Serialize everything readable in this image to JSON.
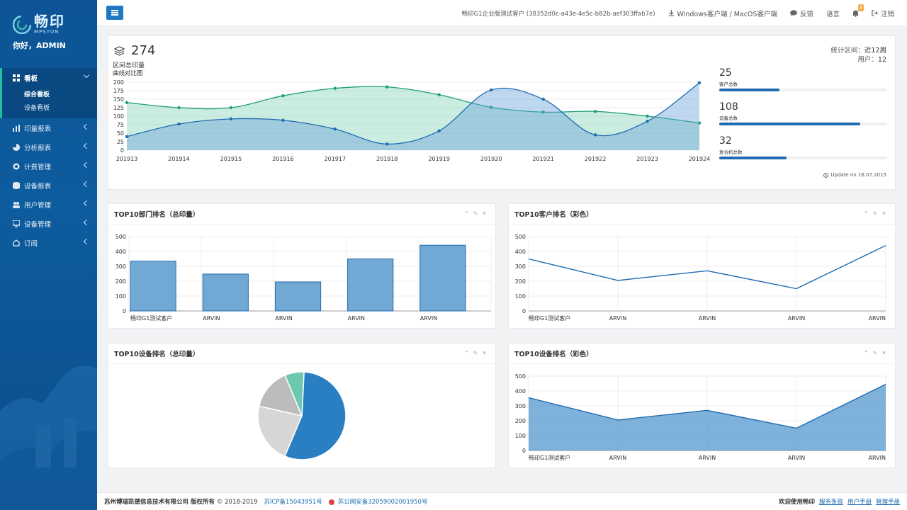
{
  "brand": {
    "name_cn": "畅印",
    "name_en": "MPSYUN",
    "greeting": "你好，ADMIN"
  },
  "sidebar": {
    "items": [
      {
        "label": "看板",
        "icon": "grid-icon",
        "active": true,
        "children": [
          {
            "label": "综合看板",
            "selected": true
          },
          {
            "label": "设备看板",
            "selected": false
          }
        ]
      },
      {
        "label": "印量报表",
        "icon": "bar-chart-icon"
      },
      {
        "label": "分析报表",
        "icon": "pie-chart-icon"
      },
      {
        "label": "计费管理",
        "icon": "coins-icon"
      },
      {
        "label": "设备报表",
        "icon": "database-icon"
      },
      {
        "label": "用户管理",
        "icon": "users-icon"
      },
      {
        "label": "设备管理",
        "icon": "monitor-icon"
      },
      {
        "label": "订阅",
        "icon": "subscribe-icon"
      }
    ]
  },
  "topbar": {
    "client": "畅印G1企业版测试客户 (38352d0c-a43e-4e5c-b82b-aef303ffab7e)",
    "download": "Windows客户端 / MacOS客户端",
    "feedback": "反馈",
    "language": "语言",
    "notifications": "3",
    "logout": "注销"
  },
  "summary": {
    "total": "274",
    "total_label": "区间总印量",
    "chart_label": "曲线对比图",
    "range_label": "统计区间：",
    "range_value": "近12周",
    "users_label": "用户：",
    "users_value": "12",
    "update": "Update on 16.07.2015",
    "stats": [
      {
        "value": "25",
        "label": "客户总数",
        "progress": 0.36
      },
      {
        "value": "108",
        "label": "设备总数",
        "progress": 0.84
      },
      {
        "value": "32",
        "label": "复合机总数",
        "progress": 0.4
      }
    ]
  },
  "panels": {
    "dept": {
      "title": "TOP10部门排名（总印量）"
    },
    "customer": {
      "title": "TOP10客户排名（彩色）"
    },
    "device_pie": {
      "title": "TOP10设备排名（总印量）"
    },
    "device_color": {
      "title": "TOP10设备排名（彩色）"
    }
  },
  "chart_data": [
    {
      "type": "area",
      "x": [
        "201913",
        "201914",
        "201915",
        "201916",
        "201917",
        "201918",
        "201919",
        "201920",
        "201921",
        "201922",
        "201923",
        "201924"
      ],
      "ylim": [
        0,
        200
      ],
      "yticks": [
        0,
        25,
        50,
        75,
        100,
        125,
        150,
        175,
        200
      ],
      "series": [
        {
          "color": "#7cd0b4",
          "values": [
            140,
            125,
            125,
            160,
            182,
            186,
            163,
            126,
            112,
            114,
            100,
            80
          ]
        },
        {
          "color": "#5e9ed6",
          "values": [
            40,
            77,
            92,
            88,
            62,
            18,
            57,
            177,
            150,
            45,
            85,
            198
          ]
        }
      ]
    },
    {
      "type": "bar",
      "categories": [
        "畅印G1测试客户",
        "ARVIN",
        "ARVIN",
        "ARVIN",
        "ARVIN"
      ],
      "values": [
        335,
        248,
        195,
        350,
        442
      ],
      "ylim": [
        0,
        500
      ],
      "yticks": [
        0,
        100,
        200,
        300,
        400,
        500
      ]
    },
    {
      "type": "line",
      "categories": [
        "畅印G1测试客户",
        "ARVIN",
        "ARVIN",
        "ARVIN",
        "ARVIN"
      ],
      "values": [
        350,
        205,
        270,
        150,
        440
      ],
      "ylim": [
        0,
        500
      ],
      "yticks": [
        0,
        100,
        200,
        300,
        400,
        500
      ]
    },
    {
      "type": "pie",
      "values": [
        55,
        22,
        15,
        7
      ],
      "colors": [
        "#2a7fc3",
        "#d6d6d6",
        "#bcbcbc",
        "#6cc9b0"
      ]
    },
    {
      "type": "area",
      "categories": [
        "畅印G1测试客户",
        "ARVIN",
        "ARVIN",
        "ARVIN",
        "ARVIN"
      ],
      "values": [
        355,
        205,
        270,
        150,
        445
      ],
      "ylim": [
        0,
        500
      ],
      "yticks": [
        0,
        100,
        200,
        300,
        400,
        500
      ]
    }
  ],
  "footer": {
    "company": "苏州博瑞凯德信息技术有限公司 版权所有",
    "copyright": "© 2018-2019",
    "icp": "苏ICP备15043951号",
    "police": "苏公网安备32059002001950号",
    "welcome": "欢迎使用畅印",
    "terms": "服务条款",
    "manual": "用户手册",
    "admin_manual": "管理手册"
  }
}
